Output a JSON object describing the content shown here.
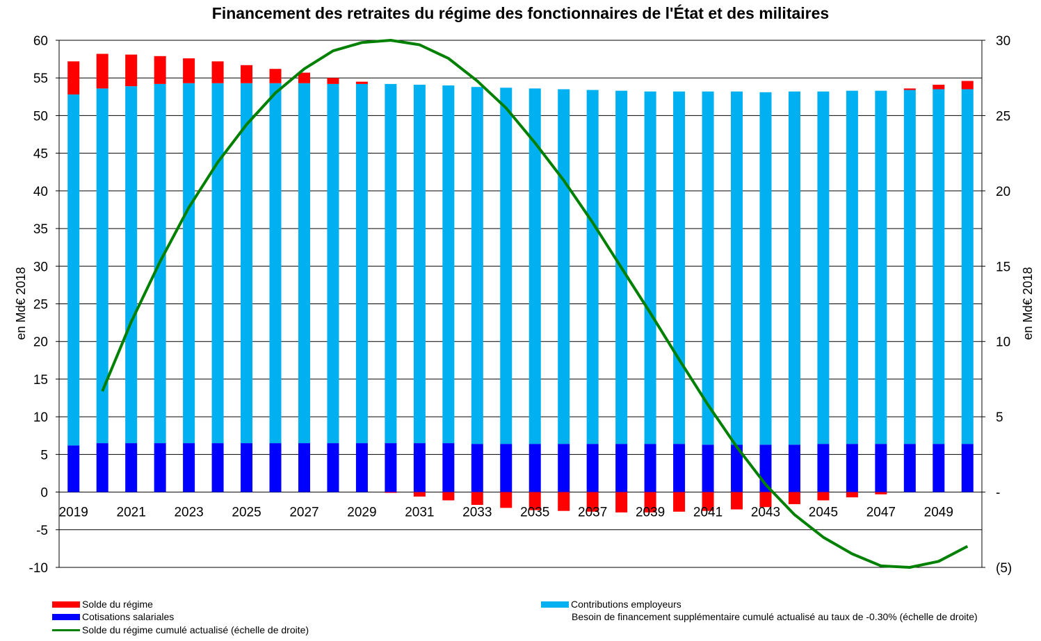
{
  "chart_data": {
    "type": "bar",
    "title": "Financement des retraites du régime des fonctionnaires de l'État et des militaires",
    "ylabel": "en Md€ 2018",
    "y2label": "en Md€ 2018",
    "ylim": [
      -10,
      60
    ],
    "y2lim": [
      -5,
      30
    ],
    "yticks": [
      "60",
      "55",
      "50",
      "45",
      "40",
      "35",
      "30",
      "25",
      "20",
      "15",
      "10",
      "5",
      "0",
      "-5",
      "-10"
    ],
    "y2ticks": [
      "30",
      "25",
      "20",
      "15",
      "10",
      "5",
      "-",
      "(5)"
    ],
    "x": [
      2019,
      2020,
      2021,
      2022,
      2023,
      2024,
      2025,
      2026,
      2027,
      2028,
      2029,
      2030,
      2031,
      2032,
      2033,
      2034,
      2035,
      2036,
      2037,
      2038,
      2039,
      2040,
      2041,
      2042,
      2043,
      2044,
      2045,
      2046,
      2047,
      2048,
      2049,
      2050
    ],
    "xtick_labels": [
      "2019",
      "2021",
      "2023",
      "2025",
      "2027",
      "2029",
      "2031",
      "2033",
      "2035",
      "2037",
      "2039",
      "2041",
      "2043",
      "2045",
      "2047",
      "2049"
    ],
    "series": [
      {
        "name": "Cotisations salariales",
        "color": "#0000ff",
        "values": [
          6.2,
          6.5,
          6.5,
          6.5,
          6.5,
          6.5,
          6.5,
          6.5,
          6.5,
          6.5,
          6.5,
          6.5,
          6.5,
          6.5,
          6.4,
          6.4,
          6.4,
          6.4,
          6.4,
          6.4,
          6.4,
          6.4,
          6.3,
          6.3,
          6.3,
          6.3,
          6.4,
          6.4,
          6.4,
          6.4,
          6.4,
          6.4
        ]
      },
      {
        "name": "Contributions employeurs",
        "color": "#00b0f0",
        "values": [
          46.6,
          47.1,
          47.4,
          47.7,
          47.8,
          47.8,
          47.8,
          47.8,
          47.8,
          47.7,
          47.7,
          47.7,
          47.6,
          47.5,
          47.4,
          47.3,
          47.2,
          47.1,
          47.0,
          46.9,
          46.8,
          46.8,
          46.9,
          46.9,
          46.8,
          46.9,
          46.8,
          46.9,
          46.9,
          47.0,
          47.1,
          47.1
        ]
      },
      {
        "name": "Solde du régime",
        "color": "#ff0000",
        "values": [
          4.4,
          4.6,
          4.2,
          3.7,
          3.3,
          2.9,
          2.4,
          1.9,
          1.4,
          0.8,
          0.3,
          -0.1,
          -0.6,
          -1.1,
          -1.7,
          -2.1,
          -2.4,
          -2.5,
          -2.6,
          -2.7,
          -2.7,
          -2.6,
          -2.5,
          -2.3,
          -2.0,
          -1.6,
          -1.1,
          -0.7,
          -0.3,
          0.2,
          0.6,
          1.1
        ]
      },
      {
        "name": "Solde du régime cumulé actualisé (échelle de droite)",
        "color": "#008000",
        "axis": "right",
        "x": [
          2020,
          2021,
          2022,
          2023,
          2024,
          2025,
          2026,
          2027,
          2028,
          2029,
          2030,
          2031,
          2032,
          2033,
          2034,
          2035,
          2036,
          2037,
          2038,
          2039,
          2040,
          2041,
          2042,
          2043,
          2044,
          2045,
          2046,
          2047,
          2048,
          2049,
          2050
        ],
        "values": [
          6.7,
          11.3,
          15.3,
          18.9,
          21.9,
          24.4,
          26.5,
          28.1,
          29.3,
          29.85,
          30.0,
          29.7,
          28.8,
          27.3,
          25.5,
          23.2,
          20.7,
          17.9,
          14.9,
          11.9,
          8.8,
          5.8,
          3.0,
          0.5,
          -1.5,
          -3.0,
          -4.1,
          -4.9,
          -5.0,
          -4.6,
          -3.6
        ]
      }
    ],
    "legend": [
      {
        "name": "Solde du régime",
        "kind": "bar",
        "color": "#ff0000"
      },
      {
        "name": "Cotisations salariales",
        "kind": "bar",
        "color": "#0000ff"
      },
      {
        "name": "Solde du régime cumulé actualisé (échelle de droite)",
        "kind": "line",
        "color": "#008000"
      },
      {
        "name": "Contributions employeurs",
        "kind": "bar",
        "color": "#00b0f0"
      },
      {
        "name": "Besoin de financement supplémentaire cumulé actualisé au taux de -0.30% (échelle de droite)",
        "kind": "none",
        "color": ""
      }
    ],
    "grid": "horizontal",
    "legend_position": "bottom"
  }
}
